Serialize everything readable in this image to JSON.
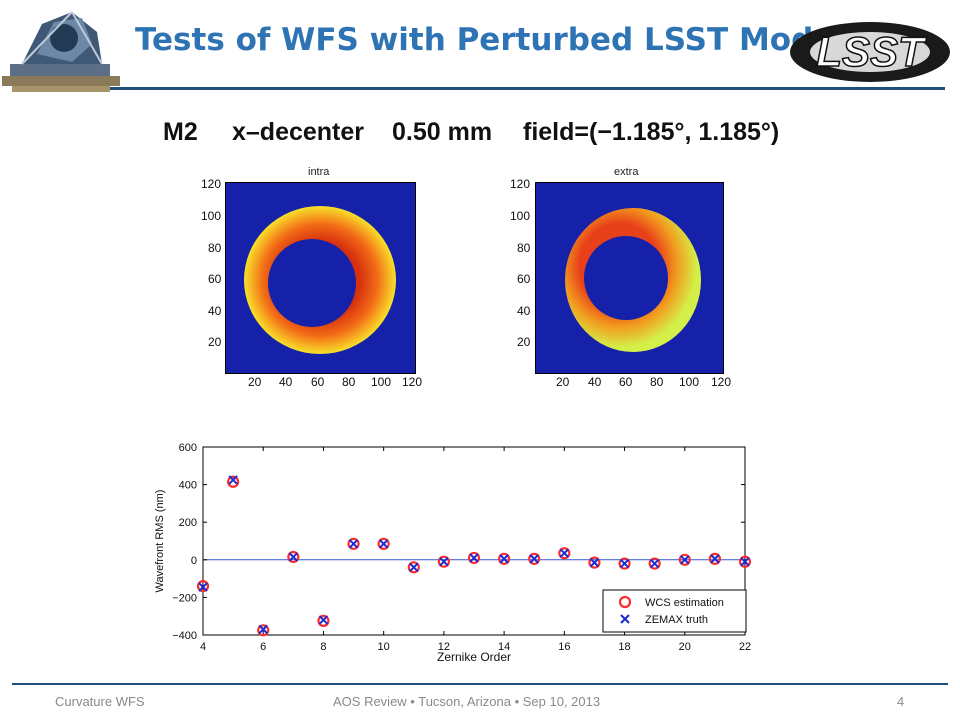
{
  "slide": {
    "title": "Tests of WFS with Perturbed LSST Model",
    "heading": {
      "mirror": "M2",
      "type": "x–decenter",
      "value": "0.50 mm",
      "field": "field=(−1.185°,  1.185°)"
    },
    "logo_text": "LSST",
    "footer": {
      "left": "Curvature WFS",
      "center": "AOS Review • Tucson, Arizona • Sep 10, 2013",
      "page": "4"
    }
  },
  "images": [
    {
      "title": "intra",
      "xticks": [
        "20",
        "40",
        "60",
        "80",
        "100",
        "120"
      ],
      "yticks": [
        "120",
        "100",
        "80",
        "60",
        "40",
        "20"
      ],
      "colors": {
        "background": "#1421a8",
        "ring_outer": "#f8e02a",
        "ring_inner": "#dd3b12"
      }
    },
    {
      "title": "extra",
      "xticks": [
        "20",
        "40",
        "60",
        "80",
        "100",
        "120"
      ],
      "yticks": [
        "120",
        "100",
        "80",
        "60",
        "40",
        "20"
      ],
      "colors": {
        "background": "#1421a8",
        "ring_outer": "#d4f048",
        "ring_inner": "#e8401a"
      }
    }
  ],
  "chart_data": {
    "type": "scatter",
    "xlabel": "Zernike Order",
    "ylabel": "Wavefront RMS (nm)",
    "xlim": [
      4,
      22
    ],
    "ylim": [
      -400,
      600
    ],
    "xticks": [
      4,
      6,
      8,
      10,
      12,
      14,
      16,
      18,
      20,
      22
    ],
    "yticks": [
      600,
      400,
      200,
      0,
      -200,
      -400
    ],
    "grid": false,
    "zero_line": true,
    "legend_position": "bottom-right",
    "series": [
      {
        "name": "WCS estimation",
        "marker": "circle",
        "color": "#ff2a2a",
        "x": [
          4,
          5,
          6,
          7,
          8,
          9,
          10,
          11,
          12,
          13,
          14,
          15,
          16,
          17,
          18,
          19,
          20,
          21,
          22
        ],
        "y": [
          -140,
          415,
          -375,
          15,
          -325,
          85,
          85,
          -40,
          -10,
          10,
          5,
          5,
          35,
          -15,
          -20,
          -20,
          0,
          5,
          -10
        ]
      },
      {
        "name": "ZEMAX truth",
        "marker": "x",
        "color": "#1a2bd6",
        "x": [
          4,
          5,
          6,
          7,
          8,
          9,
          10,
          11,
          12,
          13,
          14,
          15,
          16,
          17,
          18,
          19,
          20,
          21,
          22
        ],
        "y": [
          -145,
          425,
          -370,
          15,
          -320,
          85,
          85,
          -40,
          -10,
          10,
          5,
          5,
          35,
          -15,
          -20,
          -20,
          0,
          5,
          -10
        ]
      }
    ]
  }
}
